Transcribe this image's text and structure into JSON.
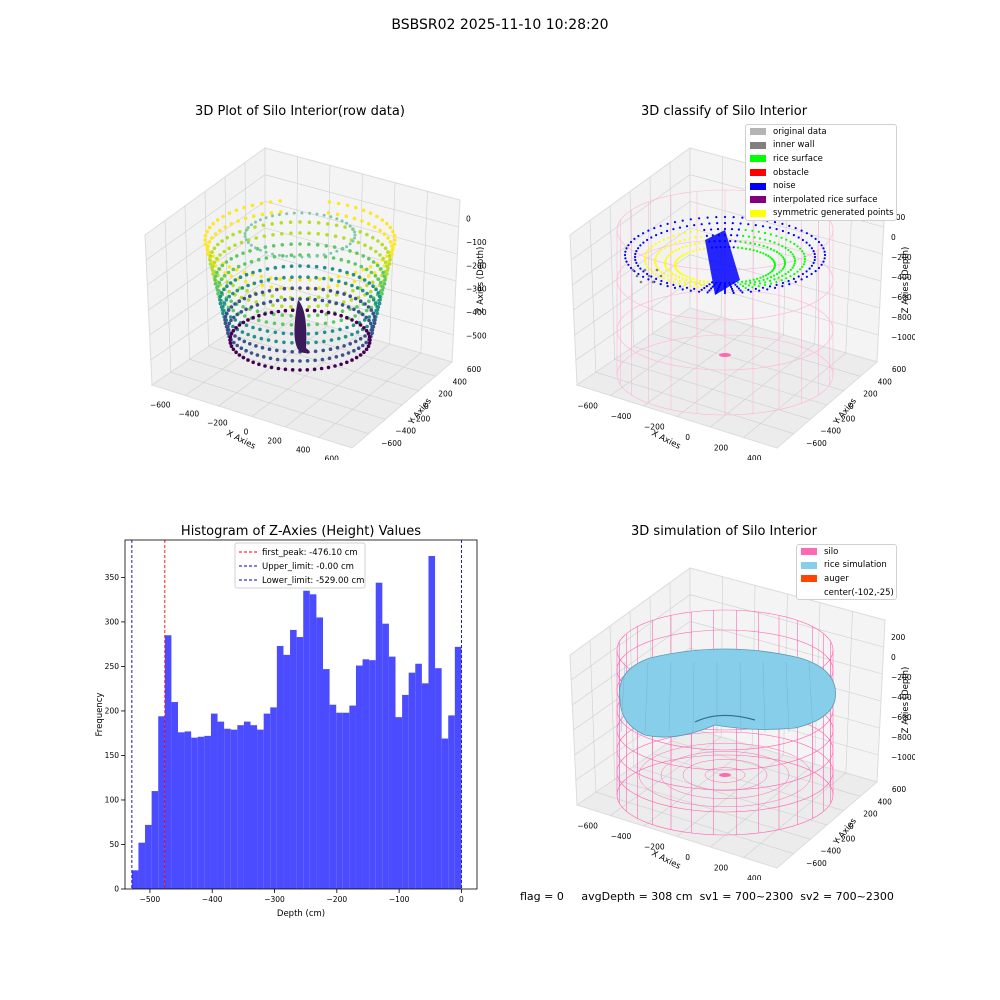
{
  "suptitle": "BSBSR02 2025-11-10 10:28:20",
  "panels": {
    "raw": {
      "title": "3D Plot of Silo Interior(row data)",
      "xlabel": "X Axies",
      "ylabel": "Y Axies",
      "zlabel": "Z Axies (Depth)",
      "xticks": [
        "−600",
        "−400",
        "−200",
        "0",
        "200",
        "400",
        "600"
      ],
      "yticks": [
        "600",
        "400",
        "200",
        "0",
        "−200",
        "−400",
        "−600"
      ],
      "zticks": [
        "0",
        "−100",
        "−200",
        "−300",
        "−400",
        "−500"
      ]
    },
    "classify": {
      "title": "3D classify of Silo Interior",
      "xlabel": "X Axies",
      "ylabel": "Y Axies",
      "zlabel": "Z Axies (Depth)",
      "xticks": [
        "−600",
        "−400",
        "−200",
        "0",
        "200",
        "400"
      ],
      "yticks": [
        "600",
        "400",
        "200",
        "0",
        "−200",
        "−400",
        "−600"
      ],
      "zticks": [
        "200",
        "0",
        "−200",
        "−400",
        "−600",
        "−800",
        "−1000"
      ],
      "legend": [
        {
          "label": "original data",
          "color": "#b4b4b4"
        },
        {
          "label": "inner wall",
          "color": "#808080"
        },
        {
          "label": "rice surface",
          "color": "#00ff00"
        },
        {
          "label": "obstacle",
          "color": "#ff0000"
        },
        {
          "label": "noise",
          "color": "#0000ff"
        },
        {
          "label": "interpolated rice surface",
          "color": "#800080"
        },
        {
          "label": "symmetric generated points",
          "color": "#ffff00"
        }
      ]
    },
    "sim": {
      "title": "3D simulation of Silo Interior",
      "xlabel": "X Axies",
      "ylabel": "Y Axies",
      "zlabel": "Z Axies (Depth)",
      "xticks": [
        "−600",
        "−400",
        "−200",
        "0",
        "200",
        "400"
      ],
      "yticks": [
        "600",
        "400",
        "200",
        "0",
        "−200",
        "−400",
        "−600"
      ],
      "zticks": [
        "200",
        "0",
        "−200",
        "−400",
        "−600",
        "−800",
        "−1000"
      ],
      "legend": [
        {
          "label": "silo",
          "color": "#ff69b4"
        },
        {
          "label": "rice simulation",
          "color": "#87ceeb"
        },
        {
          "label": "auger",
          "color": "#ff4500"
        },
        {
          "label": "center(-102,-25)",
          "color": ""
        }
      ]
    }
  },
  "chart_data": {
    "type": "bar",
    "title": "Histogram of Z-Axies (Height) Values",
    "xlabel": "Depth (cm)",
    "ylabel": "Frequency",
    "xlim": [
      -540,
      25
    ],
    "ylim": [
      0,
      392
    ],
    "xticks": [
      -500,
      -400,
      -300,
      -200,
      -100,
      0
    ],
    "xtick_labels": [
      "−500",
      "−400",
      "−300",
      "−200",
      "−100",
      "0"
    ],
    "yticks": [
      0,
      50,
      100,
      150,
      200,
      250,
      300,
      350
    ],
    "bin_start": -529.0,
    "bin_width": 10.58,
    "bar_color": "#4b4bff",
    "values": [
      21,
      52,
      72,
      110,
      194,
      285,
      210,
      176,
      177,
      170,
      171,
      172,
      197,
      188,
      180,
      179,
      184,
      188,
      184,
      179,
      197,
      204,
      273,
      263,
      291,
      283,
      335,
      331,
      305,
      247,
      207,
      198,
      198,
      206,
      251,
      258,
      257,
      344,
      298,
      261,
      193,
      218,
      243,
      253,
      231,
      374,
      248,
      169,
      195,
      272
    ],
    "lines": [
      {
        "label": "first_peak: -476.10 cm",
        "x": -476.1,
        "color": "#ff0000"
      },
      {
        "label": "Upper_limit: -0.00 cm",
        "x": 0.0,
        "color": "#0000cc"
      },
      {
        "label": "Lower_limit: -529.00 cm",
        "x": -529.0,
        "color": "#0000cc"
      }
    ],
    "legend_position": "upper center"
  },
  "footer": {
    "flag": "flag = 0",
    "avg_depth": "avgDepth = 308 cm",
    "sv1": "sv1 = 700~2300",
    "sv2": "sv2 = 700~2300"
  }
}
